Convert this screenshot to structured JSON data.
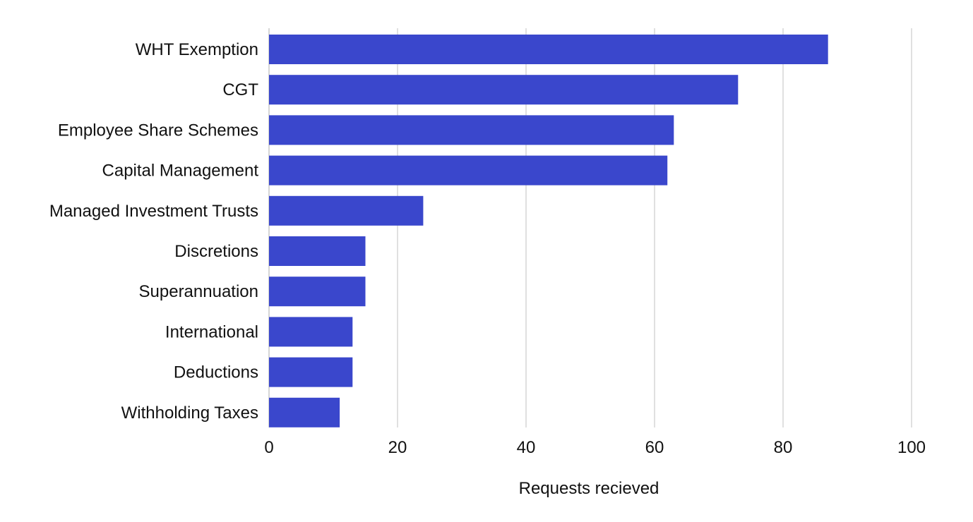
{
  "chart_data": {
    "type": "bar",
    "orientation": "horizontal",
    "categories": [
      "WHT Exemption",
      "CGT",
      "Employee Share Schemes",
      "Capital Management",
      "Managed Investment Trusts",
      "Discretions",
      "Superannuation",
      "International",
      "Deductions",
      "Withholding Taxes"
    ],
    "values": [
      87,
      73,
      63,
      62,
      24,
      15,
      15,
      13,
      13,
      11
    ],
    "title": "",
    "xlabel": "Requests recieved",
    "ylabel": "",
    "xlim": [
      0,
      100
    ],
    "xticks": [
      "0",
      "20",
      "40",
      "60",
      "80",
      "100"
    ],
    "grid": "vertical",
    "bar_color": "#3a47cc"
  }
}
